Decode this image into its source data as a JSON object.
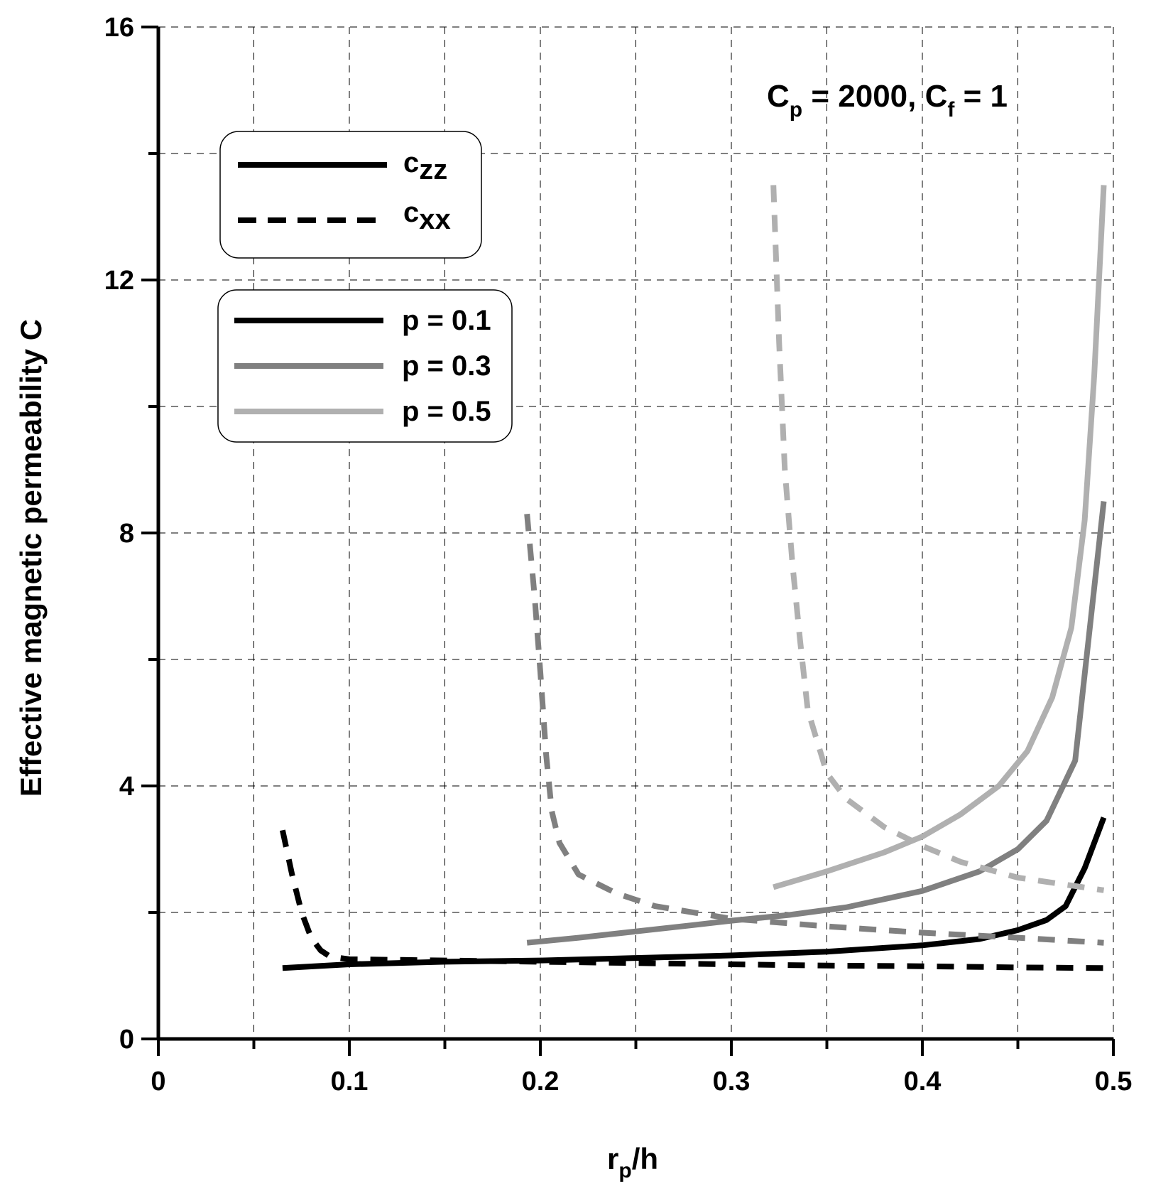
{
  "chart_data": {
    "type": "line",
    "title": "",
    "annotation": {
      "main": "C",
      "sub": "p",
      "mid": " = 2000, C",
      "sub2": "f",
      "tail": " = 1"
    },
    "xlabel": {
      "main": "r",
      "sub": "p",
      "tail": "/h"
    },
    "ylabel": "Effective magnetic permeability C",
    "xlim": [
      0,
      0.5
    ],
    "ylim": [
      0,
      16
    ],
    "x_ticks": [
      "0",
      "0.1",
      "0.2",
      "0.3",
      "0.4",
      "0.5"
    ],
    "y_ticks": [
      "0",
      "4",
      "8",
      "12",
      "16"
    ],
    "grid": true,
    "legend_style": [
      {
        "label": "c",
        "sub": "zz",
        "style": "solid"
      },
      {
        "label": "c",
        "sub": "xx",
        "style": "dashed"
      }
    ],
    "legend_p": [
      {
        "label": "p = 0.1",
        "color": "#000000"
      },
      {
        "label": "p = 0.3",
        "color": "#808080"
      },
      {
        "label": "p = 0.5",
        "color": "#b0b0b0"
      }
    ],
    "series": [
      {
        "name": "czz p=0.1",
        "style": "solid",
        "color": "#000000",
        "x": [
          0.065,
          0.1,
          0.15,
          0.2,
          0.25,
          0.3,
          0.35,
          0.4,
          0.43,
          0.45,
          0.465,
          0.475,
          0.485,
          0.495
        ],
        "y": [
          1.12,
          1.18,
          1.22,
          1.24,
          1.28,
          1.32,
          1.38,
          1.48,
          1.58,
          1.72,
          1.88,
          2.1,
          2.7,
          3.5
        ]
      },
      {
        "name": "cxx p=0.1",
        "style": "dashed",
        "color": "#000000",
        "x": [
          0.065,
          0.07,
          0.075,
          0.08,
          0.085,
          0.09,
          0.1,
          0.15,
          0.2,
          0.25,
          0.3,
          0.35,
          0.4,
          0.45,
          0.495
        ],
        "y": [
          3.3,
          2.6,
          2.0,
          1.6,
          1.4,
          1.3,
          1.26,
          1.24,
          1.22,
          1.2,
          1.18,
          1.16,
          1.15,
          1.13,
          1.12
        ]
      },
      {
        "name": "czz p=0.3",
        "style": "solid",
        "color": "#808080",
        "x": [
          0.193,
          0.22,
          0.25,
          0.28,
          0.3,
          0.33,
          0.36,
          0.4,
          0.43,
          0.45,
          0.465,
          0.48,
          0.495
        ],
        "y": [
          1.52,
          1.6,
          1.7,
          1.8,
          1.87,
          1.96,
          2.08,
          2.34,
          2.65,
          3.0,
          3.45,
          4.4,
          8.5
        ]
      },
      {
        "name": "cxx p=0.3",
        "style": "dashed",
        "color": "#808080",
        "x": [
          0.193,
          0.197,
          0.2,
          0.203,
          0.206,
          0.21,
          0.22,
          0.24,
          0.26,
          0.3,
          0.35,
          0.4,
          0.45,
          0.495
        ],
        "y": [
          8.3,
          7.0,
          5.8,
          4.5,
          3.6,
          3.1,
          2.6,
          2.3,
          2.1,
          1.9,
          1.78,
          1.68,
          1.6,
          1.52
        ]
      },
      {
        "name": "czz p=0.5",
        "style": "solid",
        "color": "#b0b0b0",
        "x": [
          0.322,
          0.35,
          0.38,
          0.4,
          0.42,
          0.44,
          0.455,
          0.468,
          0.478,
          0.485,
          0.49,
          0.495
        ],
        "y": [
          2.4,
          2.65,
          2.95,
          3.2,
          3.55,
          4.0,
          4.55,
          5.4,
          6.5,
          8.2,
          10.5,
          13.5
        ]
      },
      {
        "name": "cxx p=0.5",
        "style": "dashed",
        "color": "#b0b0b0",
        "x": [
          0.322,
          0.325,
          0.328,
          0.332,
          0.336,
          0.34,
          0.35,
          0.36,
          0.38,
          0.4,
          0.42,
          0.45,
          0.495
        ],
        "y": [
          13.5,
          11.0,
          9.0,
          7.5,
          6.3,
          5.2,
          4.2,
          3.8,
          3.35,
          3.05,
          2.8,
          2.55,
          2.35
        ]
      }
    ]
  }
}
